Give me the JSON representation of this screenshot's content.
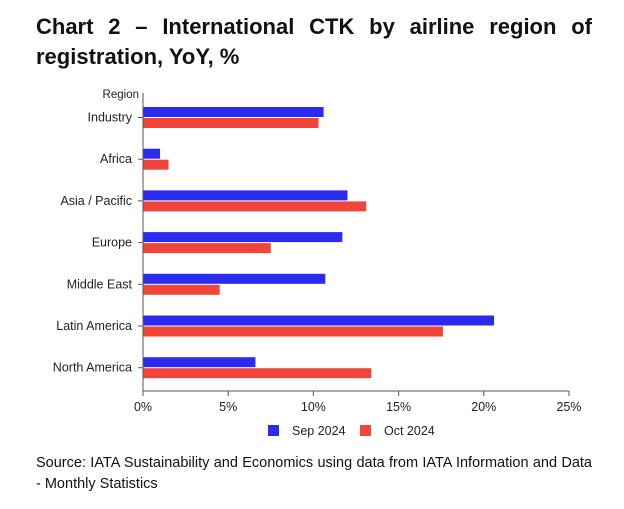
{
  "header": {
    "chart_number": "Chart 2",
    "title": "– International CTK by airline region of registration, YoY, %"
  },
  "source": "Source: IATA Sustainability and Economics using data from IATA Information and Data - Monthly Statistics",
  "colors": {
    "sep_2024": "#2b2bf0",
    "oct_2024": "#f2453a",
    "axis": "#555555"
  },
  "chart_data": {
    "type": "bar",
    "orientation": "horizontal",
    "y_axis_title": "Region",
    "categories": [
      "Industry",
      "Africa",
      "Asia / Pacific",
      "Europe",
      "Middle East",
      "Latin America",
      "North America"
    ],
    "series": [
      {
        "name": "Sep 2024",
        "values": [
          10.6,
          1.0,
          12.0,
          11.7,
          10.7,
          20.6,
          6.6
        ]
      },
      {
        "name": "Oct 2024",
        "values": [
          10.3,
          1.5,
          13.1,
          7.5,
          4.5,
          17.6,
          13.4
        ]
      }
    ],
    "xlim": [
      0,
      25
    ],
    "xticks": [
      0,
      5,
      10,
      15,
      20,
      25
    ],
    "xtick_labels": [
      "0%",
      "5%",
      "10%",
      "15%",
      "20%",
      "25%"
    ],
    "grid": false,
    "legend_position": "bottom"
  }
}
